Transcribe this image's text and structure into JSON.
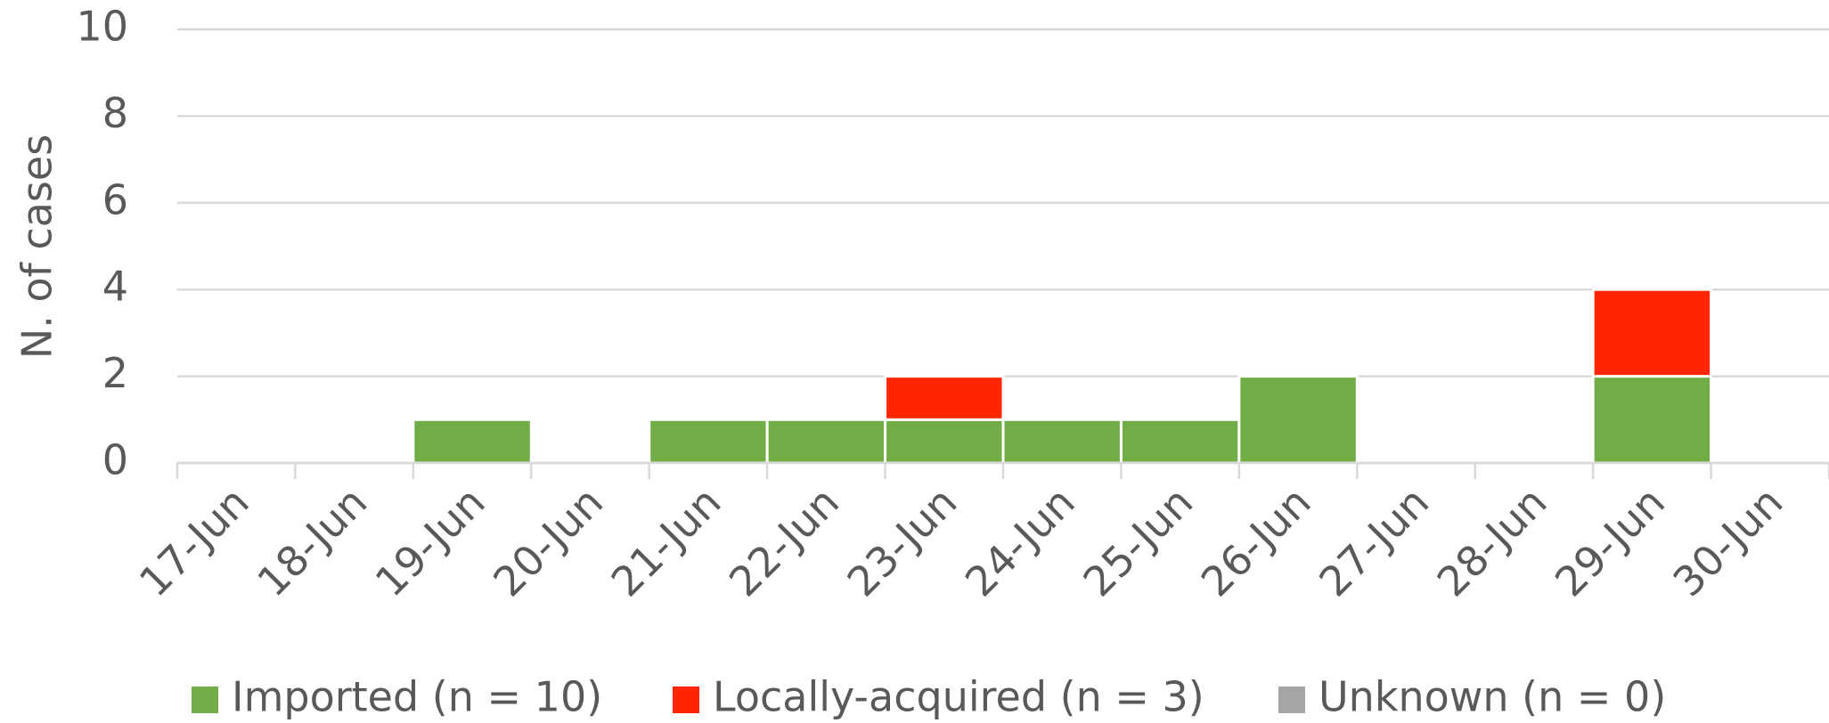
{
  "chart_data": {
    "type": "stacked_bar",
    "y_label": "N. of cases",
    "categories": [
      "17-Jun",
      "18-Jun",
      "19-Jun",
      "20-Jun",
      "21-Jun",
      "22-Jun",
      "23-Jun",
      "24-Jun",
      "25-Jun",
      "26-Jun",
      "27-Jun",
      "28-Jun",
      "29-Jun",
      "30-Jun"
    ],
    "series": [
      {
        "name": "Imported (n = 10)",
        "color": "#70ad47",
        "values": [
          0,
          0,
          1,
          0,
          1,
          1,
          1,
          1,
          1,
          2,
          0,
          0,
          2,
          0
        ]
      },
      {
        "name": "Locally-acquired (n = 3)",
        "color": "#ff2600",
        "values": [
          0,
          0,
          0,
          0,
          0,
          0,
          1,
          0,
          0,
          0,
          0,
          0,
          2,
          0
        ]
      },
      {
        "name": "Unknown (n = 0)",
        "color": "#a5a5a5",
        "values": [
          0,
          0,
          0,
          0,
          0,
          0,
          0,
          0,
          0,
          0,
          0,
          0,
          0,
          0
        ]
      }
    ],
    "ylim": [
      0,
      10
    ],
    "yticks": [
      0,
      2,
      4,
      6,
      8,
      10
    ],
    "grid": true,
    "legend": "bottom"
  }
}
